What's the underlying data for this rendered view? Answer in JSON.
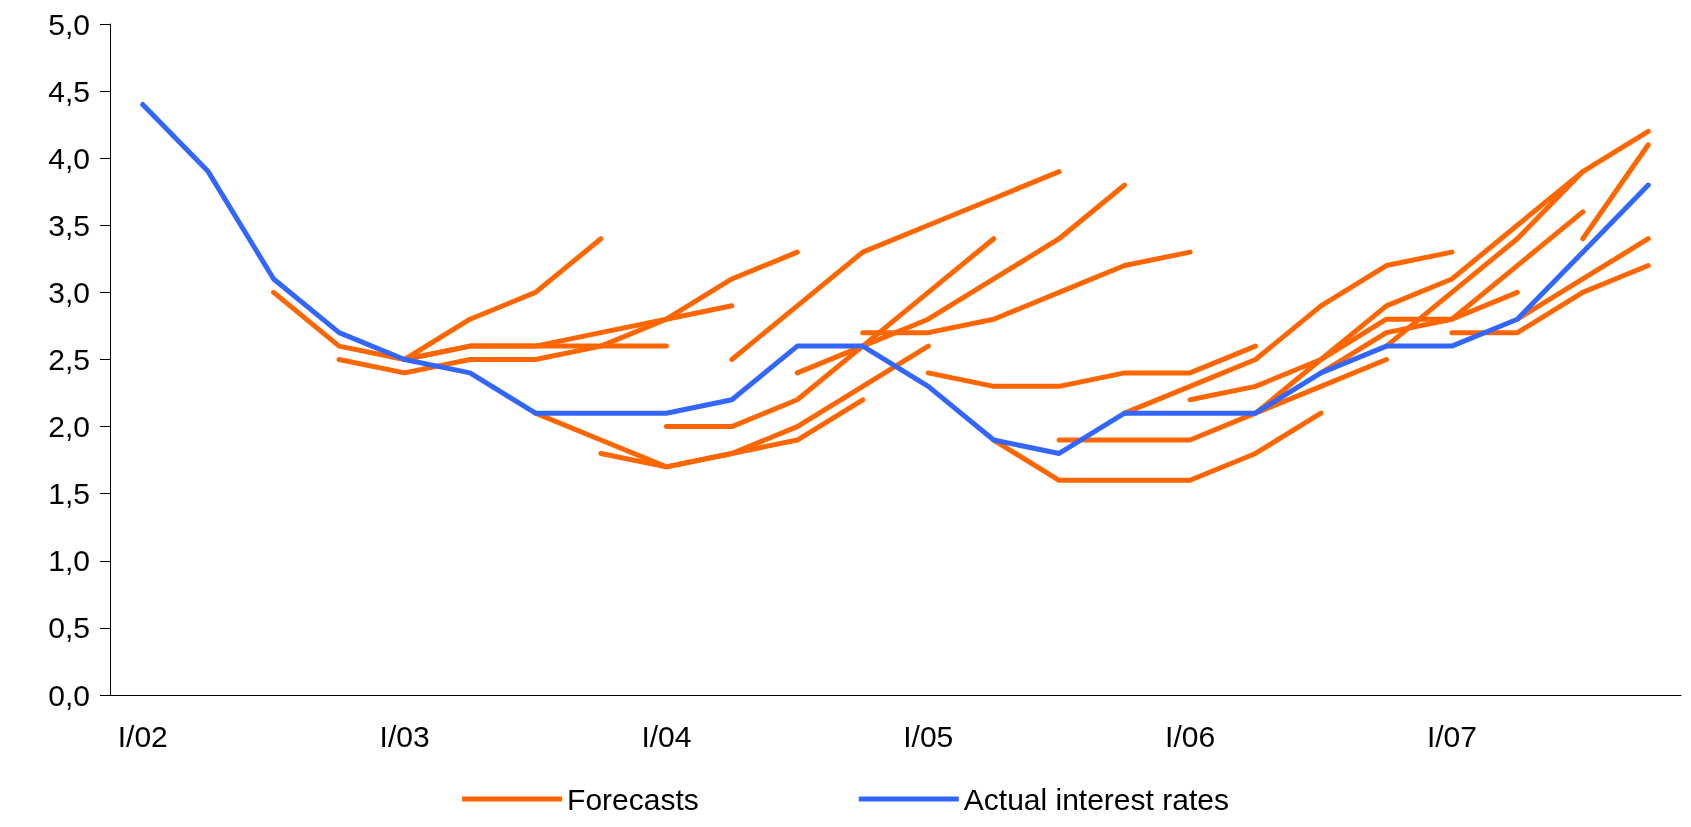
{
  "chart_data": {
    "type": "line",
    "categories": [
      "I/02",
      null,
      null,
      null,
      "I/03",
      null,
      null,
      null,
      "I/04",
      null,
      null,
      null,
      "I/05",
      null,
      null,
      null,
      "I/06",
      null,
      null,
      null,
      "I/07",
      null,
      null,
      null
    ],
    "ylim": [
      0,
      5
    ],
    "yticks": [
      {
        "value": 0,
        "label": "0,0"
      },
      {
        "value": 0.5,
        "label": "0,5"
      },
      {
        "value": 1,
        "label": "1,0"
      },
      {
        "value": 1.5,
        "label": "1,5"
      },
      {
        "value": 2,
        "label": "2,0"
      },
      {
        "value": 2.5,
        "label": "2,5"
      },
      {
        "value": 3,
        "label": "3,0"
      },
      {
        "value": 3.5,
        "label": "3,5"
      },
      {
        "value": 4,
        "label": "4,0"
      },
      {
        "value": 4.5,
        "label": "4,5"
      },
      {
        "value": 5,
        "label": "5,0"
      }
    ],
    "grid": false,
    "legend": "bottom",
    "marker": "none",
    "line_style": "solid",
    "series": [
      {
        "name": "Forecasts",
        "color": "#ff6600",
        "values": [
          null,
          null,
          3.0,
          2.6,
          2.5,
          2.8,
          3.0,
          3.4,
          null,
          null,
          null,
          null,
          null,
          null,
          null,
          null,
          null,
          null,
          null,
          null,
          null,
          null,
          null,
          null
        ]
      },
      {
        "color": "#ff6600",
        "values": [
          null,
          null,
          null,
          2.5,
          2.4,
          2.5,
          2.5,
          2.6,
          2.8,
          3.1,
          3.3,
          null,
          null,
          null,
          null,
          null,
          null,
          null,
          null,
          null,
          null,
          null,
          null,
          null
        ]
      },
      {
        "color": "#ff6600",
        "values": [
          null,
          null,
          null,
          null,
          2.5,
          2.6,
          2.6,
          2.7,
          2.8,
          2.9,
          null,
          null,
          null,
          null,
          null,
          null,
          null,
          null,
          null,
          null,
          null,
          null,
          null,
          null
        ]
      },
      {
        "color": "#ff6600",
        "values": [
          null,
          null,
          null,
          null,
          2.5,
          2.6,
          2.6,
          2.6,
          2.6,
          null,
          null,
          null,
          null,
          null,
          null,
          null,
          null,
          null,
          null,
          null,
          null,
          null,
          null,
          null
        ]
      },
      {
        "color": "#ff6600",
        "values": [
          null,
          null,
          null,
          null,
          null,
          null,
          2.1,
          1.9,
          1.7,
          1.8,
          2.0,
          2.3,
          2.6,
          null,
          null,
          null,
          null,
          null,
          null,
          null,
          null,
          null,
          null,
          null
        ]
      },
      {
        "color": "#ff6600",
        "values": [
          null,
          null,
          null,
          null,
          null,
          null,
          null,
          1.8,
          1.7,
          1.8,
          1.9,
          2.2,
          null,
          null,
          null,
          null,
          null,
          null,
          null,
          null,
          null,
          null,
          null,
          null
        ]
      },
      {
        "color": "#ff6600",
        "values": [
          null,
          null,
          null,
          null,
          null,
          null,
          null,
          null,
          2.0,
          2.0,
          2.2,
          2.6,
          3.0,
          3.4,
          null,
          null,
          null,
          null,
          null,
          null,
          null,
          null,
          null,
          null
        ]
      },
      {
        "color": "#ff6600",
        "values": [
          null,
          null,
          null,
          null,
          null,
          null,
          null,
          null,
          null,
          2.5,
          2.9,
          3.3,
          3.5,
          3.7,
          3.9,
          null,
          null,
          null,
          null,
          null,
          null,
          null,
          null,
          null
        ]
      },
      {
        "color": "#ff6600",
        "values": [
          null,
          null,
          null,
          null,
          null,
          null,
          null,
          null,
          null,
          null,
          2.4,
          2.6,
          2.8,
          3.1,
          3.4,
          3.8,
          null,
          null,
          null,
          null,
          null,
          null,
          null,
          null
        ]
      },
      {
        "color": "#ff6600",
        "values": [
          null,
          null,
          null,
          null,
          null,
          null,
          null,
          null,
          null,
          null,
          null,
          2.7,
          2.7,
          2.8,
          3.0,
          3.2,
          3.3,
          null,
          null,
          null,
          null,
          null,
          null,
          null
        ]
      },
      {
        "color": "#ff6600",
        "values": [
          null,
          null,
          null,
          null,
          null,
          null,
          null,
          null,
          null,
          null,
          null,
          null,
          2.4,
          2.3,
          2.3,
          2.4,
          2.4,
          2.6,
          null,
          null,
          null,
          null,
          null,
          null
        ]
      },
      {
        "color": "#ff6600",
        "values": [
          null,
          null,
          null,
          null,
          null,
          null,
          null,
          null,
          null,
          null,
          null,
          null,
          null,
          1.9,
          1.6,
          1.6,
          1.6,
          1.8,
          2.1,
          null,
          null,
          null,
          null,
          null
        ]
      },
      {
        "color": "#ff6600",
        "values": [
          null,
          null,
          null,
          null,
          null,
          null,
          null,
          null,
          null,
          null,
          null,
          null,
          null,
          null,
          1.9,
          1.9,
          1.9,
          2.1,
          2.3,
          2.5,
          null,
          null,
          null,
          null
        ]
      },
      {
        "color": "#ff6600",
        "values": [
          null,
          null,
          null,
          null,
          null,
          null,
          null,
          null,
          null,
          null,
          null,
          null,
          null,
          null,
          null,
          2.1,
          2.3,
          2.5,
          2.9,
          3.2,
          3.3,
          null,
          null,
          null
        ]
      },
      {
        "color": "#ff6600",
        "values": [
          null,
          null,
          null,
          null,
          null,
          null,
          null,
          null,
          null,
          null,
          null,
          null,
          null,
          null,
          null,
          null,
          2.2,
          2.3,
          2.5,
          2.9,
          3.1,
          3.5,
          3.9,
          4.2
        ]
      },
      {
        "color": "#ff6600",
        "values": [
          null,
          null,
          null,
          null,
          null,
          null,
          null,
          null,
          null,
          null,
          null,
          null,
          null,
          null,
          null,
          null,
          null,
          2.1,
          2.5,
          2.8,
          2.8,
          3.0,
          null,
          null
        ]
      },
      {
        "color": "#ff6600",
        "values": [
          null,
          null,
          null,
          null,
          null,
          null,
          null,
          null,
          null,
          null,
          null,
          null,
          null,
          null,
          null,
          null,
          null,
          null,
          2.4,
          2.7,
          2.8,
          3.2,
          3.6,
          null
        ]
      },
      {
        "color": "#ff6600",
        "values": [
          null,
          null,
          null,
          null,
          null,
          null,
          null,
          null,
          null,
          null,
          null,
          null,
          null,
          null,
          null,
          null,
          null,
          null,
          null,
          2.6,
          3.0,
          3.4,
          3.9,
          null
        ]
      },
      {
        "color": "#ff6600",
        "values": [
          null,
          null,
          null,
          null,
          null,
          null,
          null,
          null,
          null,
          null,
          null,
          null,
          null,
          null,
          null,
          null,
          null,
          null,
          null,
          null,
          2.7,
          2.7,
          3.0,
          3.2
        ]
      },
      {
        "color": "#ff6600",
        "values": [
          null,
          null,
          null,
          null,
          null,
          null,
          null,
          null,
          null,
          null,
          null,
          null,
          null,
          null,
          null,
          null,
          null,
          null,
          null,
          null,
          null,
          2.8,
          3.1,
          3.4
        ]
      },
      {
        "color": "#ff6600",
        "values": [
          null,
          null,
          null,
          null,
          null,
          null,
          null,
          null,
          null,
          null,
          null,
          null,
          null,
          null,
          null,
          null,
          null,
          null,
          null,
          null,
          null,
          null,
          3.4,
          4.1
        ]
      },
      {
        "name": "Actual interest rates",
        "color": "#3366ff",
        "values": [
          4.4,
          3.9,
          3.1,
          2.7,
          2.5,
          2.4,
          2.1,
          2.1,
          2.1,
          2.2,
          2.6,
          2.6,
          2.3,
          1.9,
          1.8,
          2.1,
          2.1,
          2.1,
          2.4,
          2.6,
          2.6,
          2.8,
          3.3,
          3.8
        ]
      }
    ]
  }
}
